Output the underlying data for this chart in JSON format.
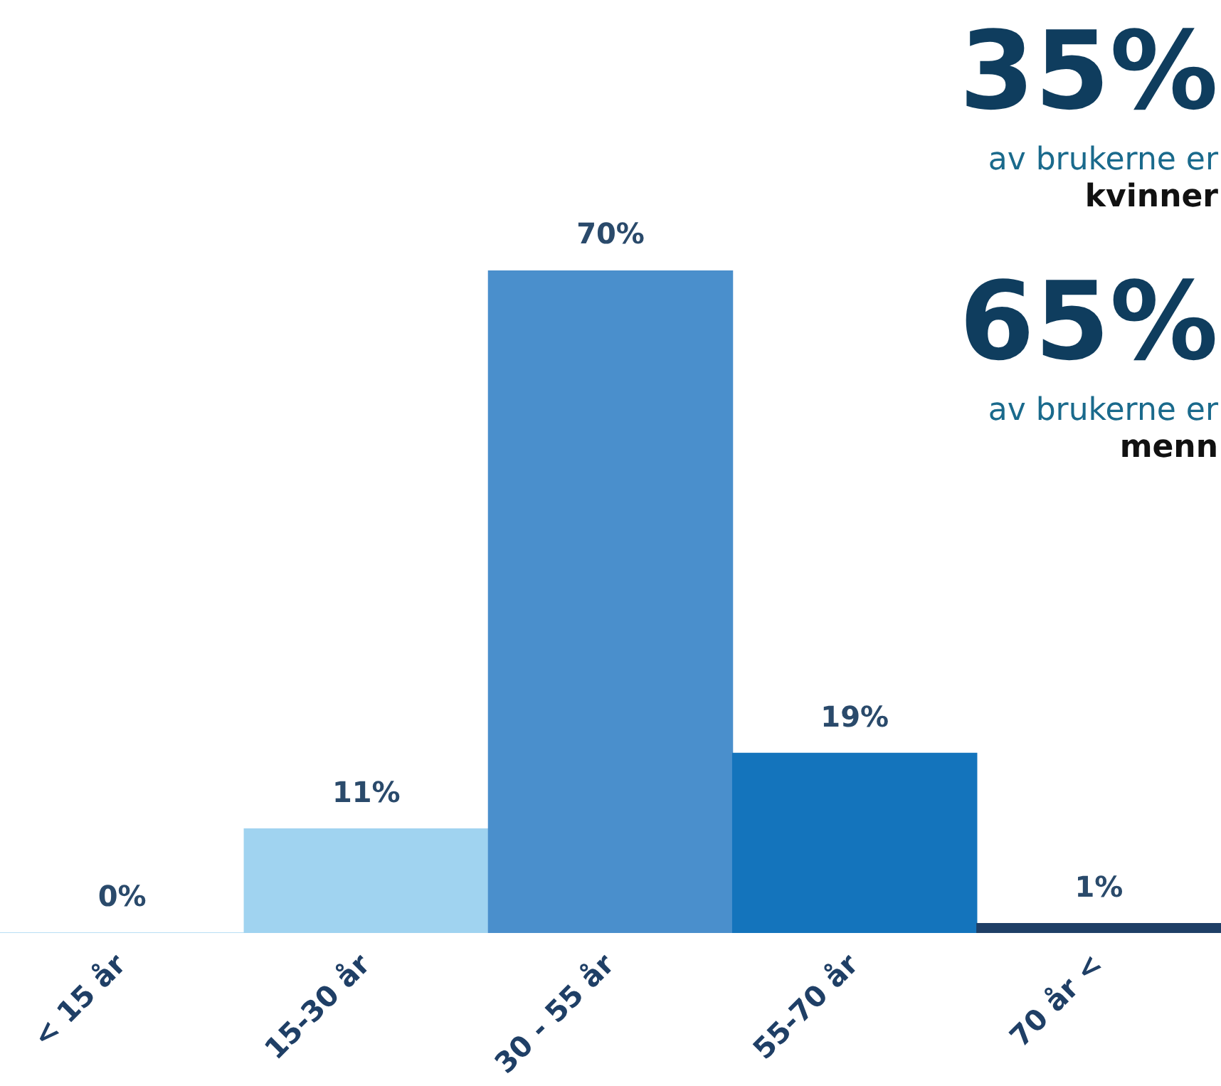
{
  "chart_data": {
    "type": "bar",
    "categories": [
      "< 15 år",
      "15-30 år",
      "30 - 55 år",
      "55-70 år",
      "70 år <"
    ],
    "values": [
      0,
      11,
      70,
      19,
      1
    ],
    "colors": [
      "#a0d3f0",
      "#a0d3f0",
      "#4a8fcc",
      "#1474bc",
      "#1f3f66"
    ],
    "value_labels": [
      "0%",
      "11%",
      "70%",
      "19%",
      "1%"
    ],
    "annotations": [
      "35%",
      "av brukerne er",
      "kvinner",
      "65%",
      "av brukerne er",
      "menn"
    ]
  }
}
